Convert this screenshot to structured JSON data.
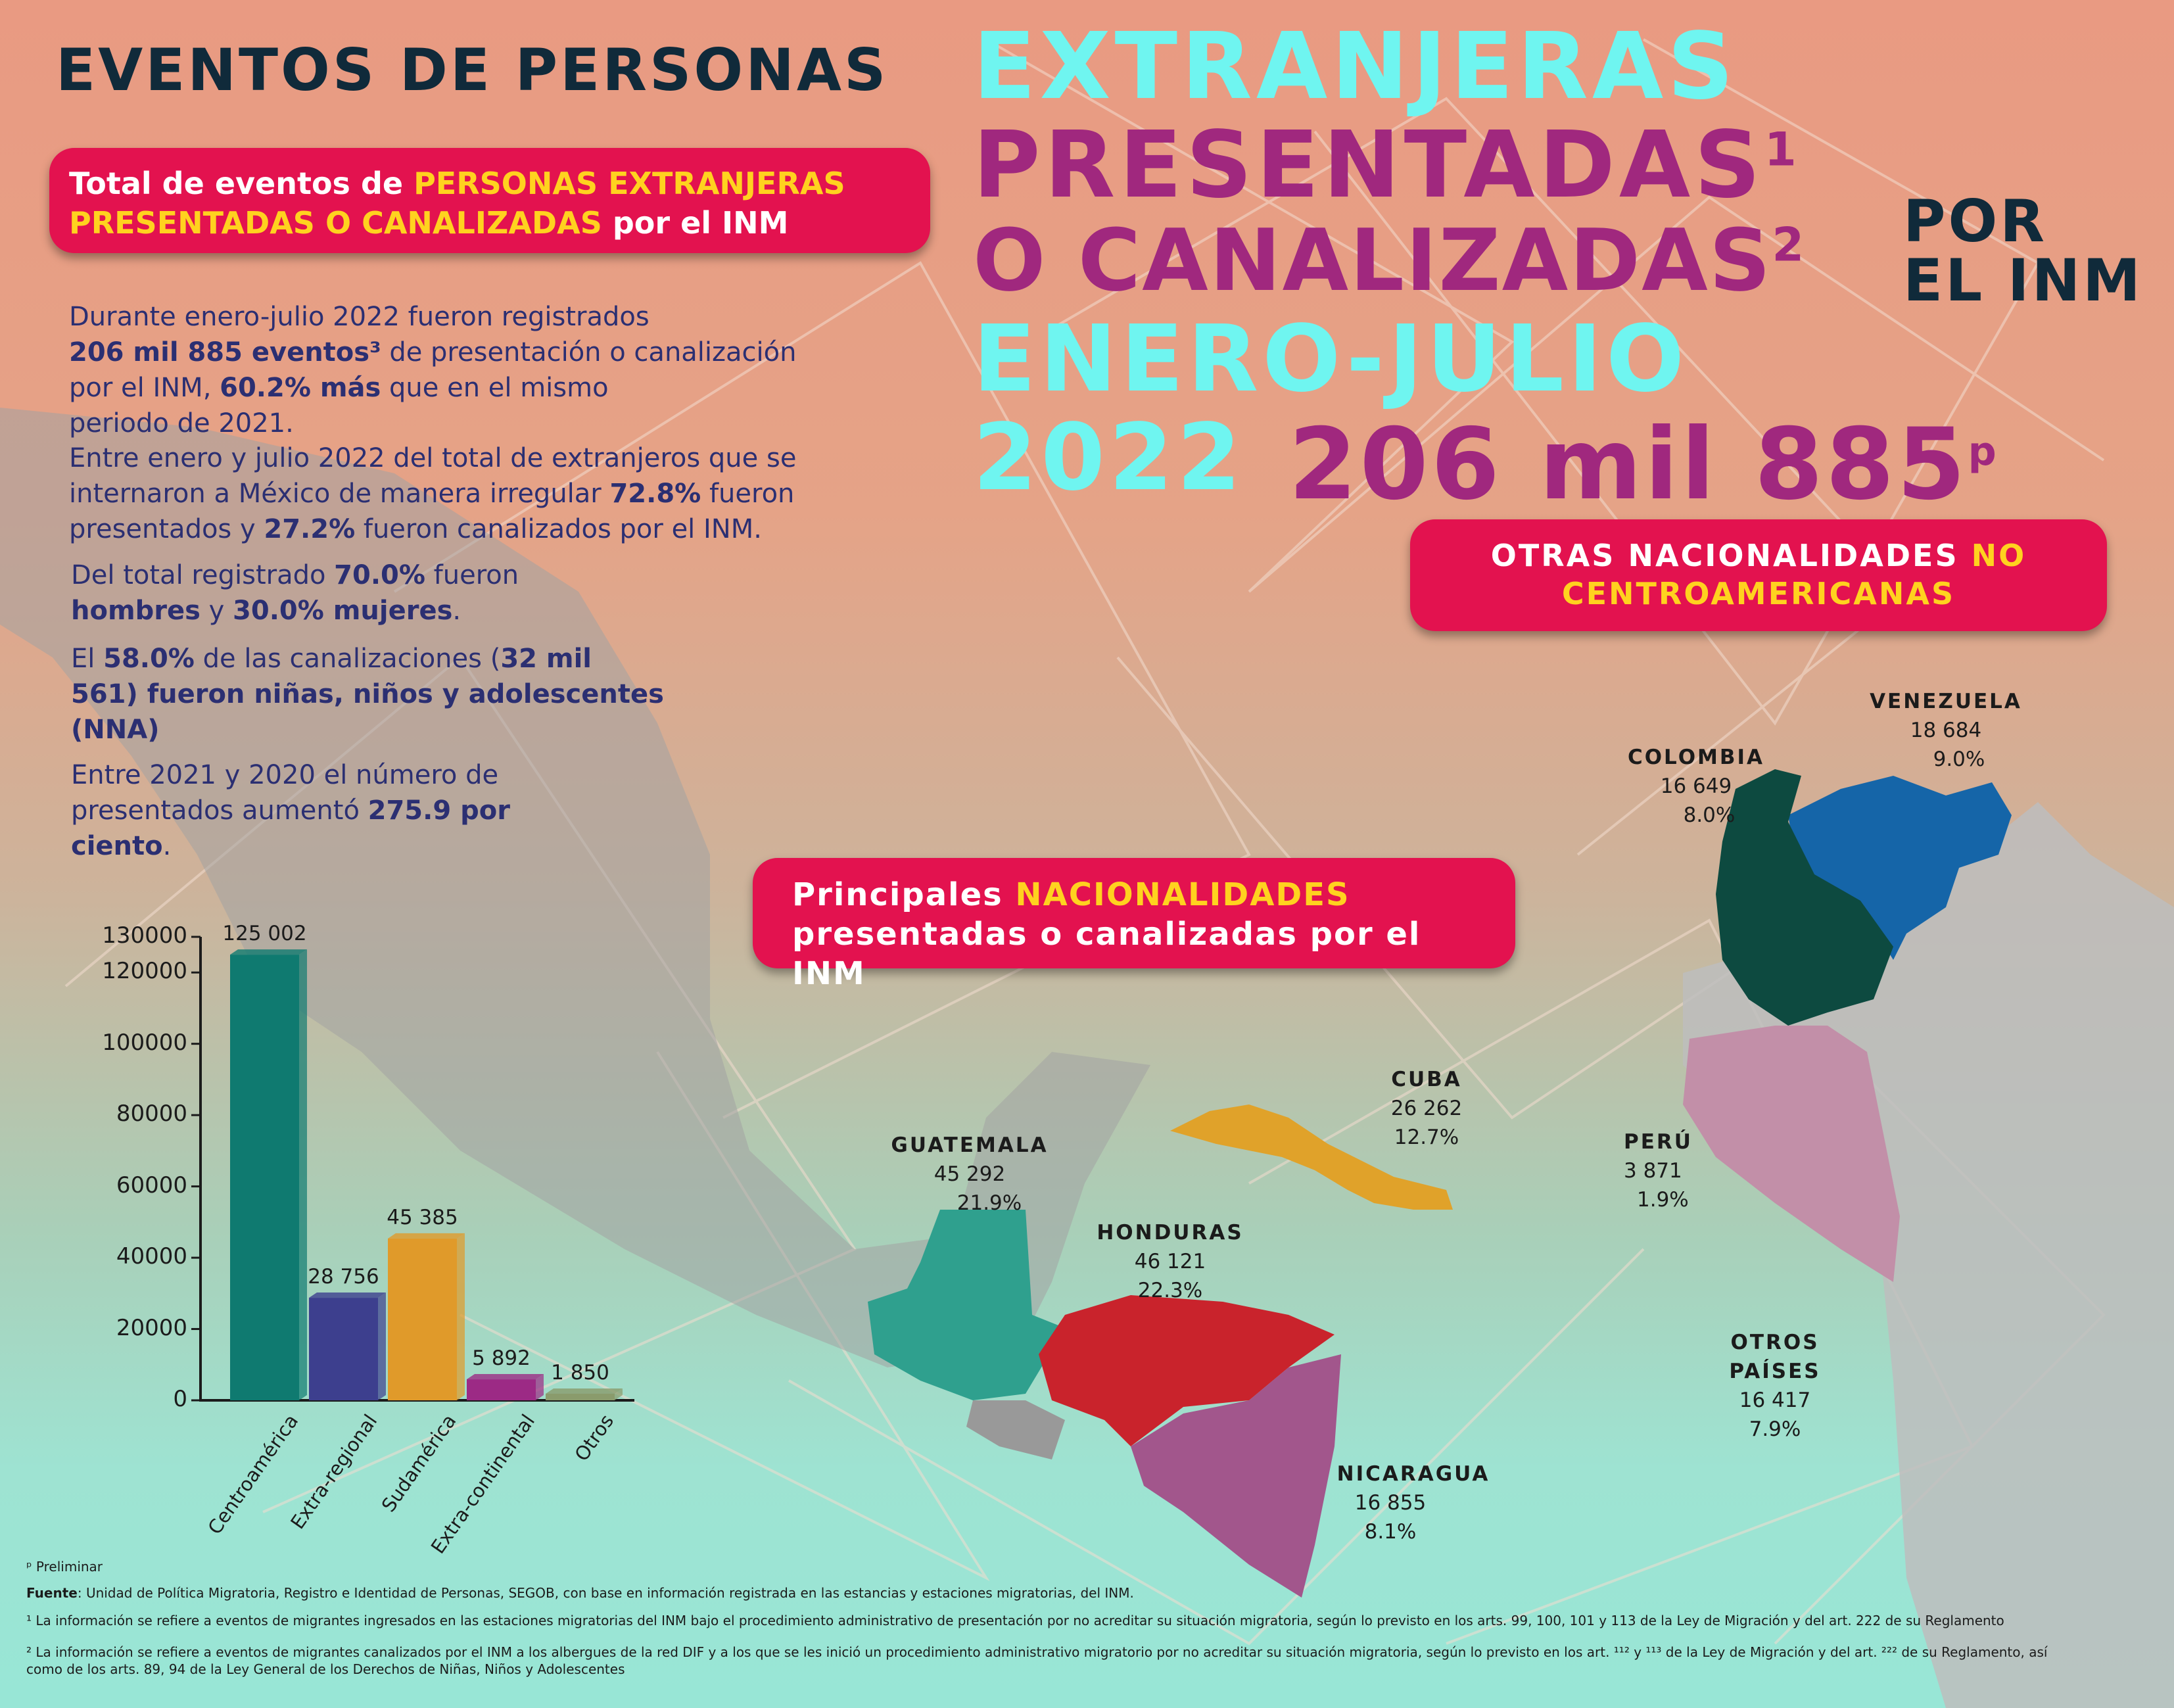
{
  "header": {
    "line1": "EVENTOS DE PERSONAS",
    "line1b": "EXTRANJERAS",
    "line2": "PRESENTADAS",
    "sup1": "1",
    "line3": "O CANALIZADAS",
    "sup2": "2",
    "por": "POR",
    "elinm": "EL INM",
    "line4": "ENERO-JULIO",
    "line5": "2022",
    "total": "206 mil 885",
    "total_sup": "p"
  },
  "pill_total": {
    "part1": "Total de eventos de ",
    "part2": "PERSONAS EXTRANJERAS",
    "part3": "PRESENTADAS O CANALIZADAS",
    "part4": " por el INM"
  },
  "pill_otras": {
    "part1": "OTRAS NACIONALIDADES ",
    "part2": "NO",
    "part3": "CENTROAMERICANAS"
  },
  "pill_principales": {
    "part1": "Principales ",
    "part2": "NACIONALIDADES",
    "part3": "presentadas o canalizadas por el INM"
  },
  "paragraphs": {
    "p1a": "Durante enero-julio 2022 fueron registrados",
    "p1b": "206 mil 885 eventos³",
    "p1c": " de presentación o canalización",
    "p1d": "por el  INM, ",
    "p1e": "60.2% más",
    "p1f": " que en el mismo",
    "p1g": "periodo de 2021.",
    "p2a": "Entre enero y julio 2022 del total de extranjeros que se",
    "p2b": "internaron a México de manera irregular ",
    "p2c": "72.8%",
    "p2d": " fueron",
    "p2e": "presentados y ",
    "p2f": "27.2%",
    "p2g": " fueron canalizados por el INM.",
    "p3a": "Del total registrado ",
    "p3b": "70.0%",
    "p3c": " fueron",
    "p3d": "hombres",
    "p3e": " y ",
    "p3f": "30.0% mujeres",
    "p3g": ".",
    "p4a": "El ",
    "p4b": "58.0%",
    "p4c": " de las canalizaciones (",
    "p4d": "32 mil",
    "p4e": "561) fueron niñas, niños y adolescentes",
    "p4f": "(NNA)",
    "p5a": "Entre 2021 y 2020 el número de",
    "p5b": "presentados aumentó ",
    "p5c": "275.9 por",
    "p5d": "ciento",
    "p5e": "."
  },
  "countries": {
    "venezuela": {
      "name": "VENEZUELA",
      "value": "18 684",
      "pct": "9.0%",
      "color": "#1565a8"
    },
    "colombia": {
      "name": "COLOMBIA",
      "value": "16 649",
      "pct": "8.0%",
      "color": "#0d4a40"
    },
    "cuba": {
      "name": "CUBA",
      "value": "26 262",
      "pct": "12.7%",
      "color": "#e0a22a"
    },
    "guatemala": {
      "name": "GUATEMALA",
      "value": "45 292",
      "pct": "21.9%",
      "color": "#2fa08e"
    },
    "honduras": {
      "name": "HONDURAS",
      "value": "46 121",
      "pct": "22.3%",
      "color": "#c9232c"
    },
    "nicaragua": {
      "name": "NICARAGUA",
      "value": "16 855",
      "pct": "8.1%",
      "color": "#a2568c"
    },
    "peru": {
      "name": "PERÚ",
      "value": "3 871",
      "pct": "1.9%",
      "color": "#c28fa8"
    },
    "otros": {
      "name": "OTROS PAÍSES",
      "value": "16 417",
      "pct": "7.9%"
    }
  },
  "chart_data": {
    "type": "bar",
    "categories": [
      "Centroamérica",
      "Extra-regional",
      "Sudamérica",
      "Extra-continental",
      "Otros"
    ],
    "values": [
      125002,
      28756,
      45385,
      5892,
      1850
    ],
    "value_labels": [
      "125 002",
      "28 756",
      "45 385",
      "5 892",
      "1 850"
    ],
    "colors": [
      "#0f7a70",
      "#3d3f8e",
      "#e09a2a",
      "#9c2a85",
      "#8a9b6c"
    ],
    "yticks": [
      "130000",
      "120000",
      "100000",
      "80000",
      "60000",
      "40000",
      "20000",
      "0"
    ],
    "ylim": [
      0,
      130000
    ]
  },
  "footnotes": {
    "prelim": "ᵖ Preliminar",
    "fuente_label": "Fuente",
    "fuente": ": Unidad de Política Migratoria, Registro e Identidad de Personas, SEGOB, con base en información registrada en las estancias y estaciones migratorias, del INM.",
    "n1": "¹ La información se refiere a eventos de migrantes ingresados en las estaciones migratorias del INM bajo el procedimiento administrativo de presentación por no acreditar su situación migratoria, según lo previsto en los arts. 99, 100, 101 y 113 de la Ley de Migración y del art. 222 de su Reglamento",
    "n2": "² La información se refiere a eventos de migrantes canalizados por el INM a los albergues de la red DIF y a los que se les inició un procedimiento administrativo migratorio por no acreditar su situación migratoria, según lo previsto en los art. ¹¹² y ¹¹³ de la Ley de Migración y del art. ²²² de su Reglamento, así",
    "n2b": "como de los arts. 89, 94 de la Ley General de los Derechos de Niñas, Niños y Adolescentes"
  }
}
